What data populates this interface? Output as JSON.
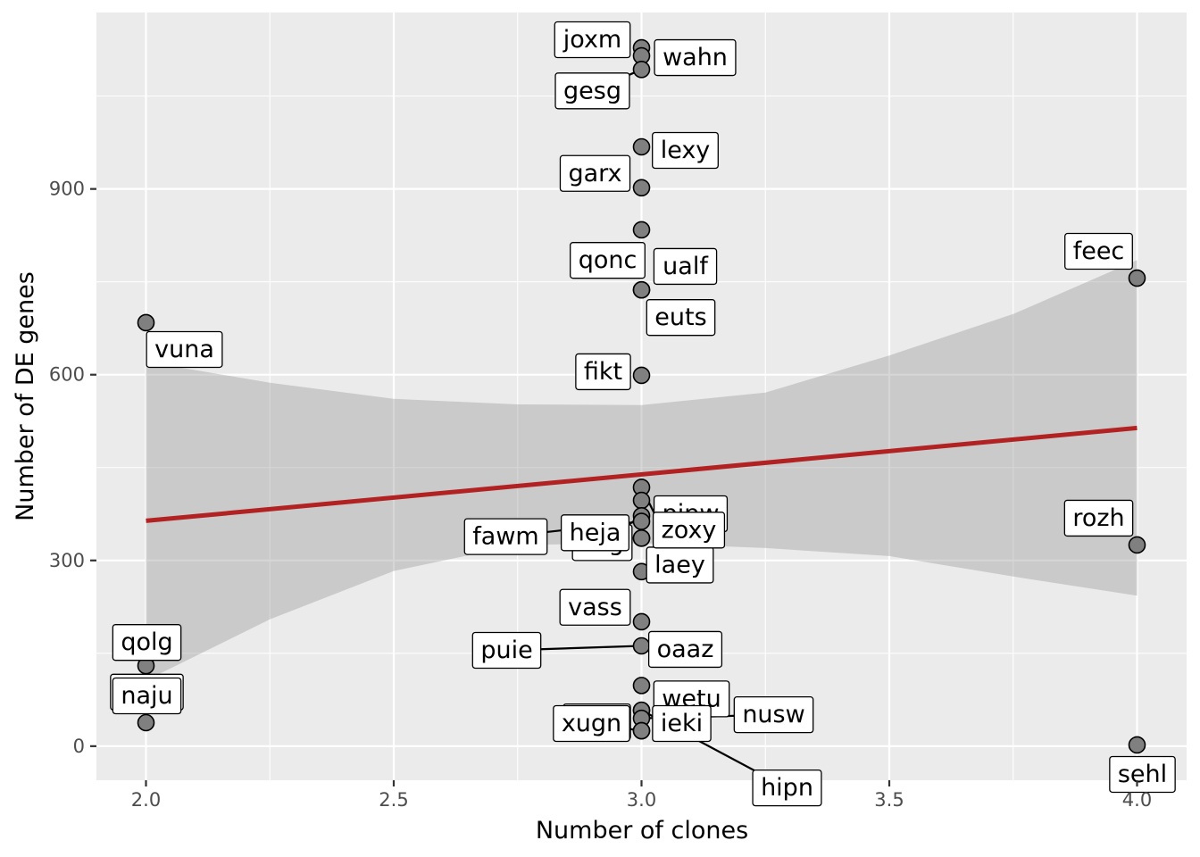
{
  "chart_data": {
    "type": "scatter",
    "xlabel": "Number of clones",
    "ylabel": "Number of DE genes",
    "xlim": [
      1.9,
      4.1
    ],
    "ylim": [
      -55,
      1185
    ],
    "x_ticks": [
      2.0,
      2.5,
      3.0,
      3.5,
      4.0
    ],
    "x_tick_labels": [
      "2.0",
      "2.5",
      "3.0",
      "3.5",
      "4.0"
    ],
    "y_ticks": [
      0,
      300,
      600,
      900
    ],
    "y_tick_labels": [
      "0",
      "300",
      "600",
      "900"
    ],
    "grid": true,
    "points": [
      {
        "label": "joxm",
        "x": 3.0,
        "y": 1128
      },
      {
        "label": "wahn",
        "x": 3.0,
        "y": 1115
      },
      {
        "label": "gesg",
        "x": 3.0,
        "y": 1093
      },
      {
        "label": "lexy",
        "x": 3.0,
        "y": 968
      },
      {
        "label": "garx",
        "x": 3.0,
        "y": 902
      },
      {
        "label": "ualf",
        "x": 3.0,
        "y": 834
      },
      {
        "label": "qonc",
        "x": 3.0,
        "y": 737
      },
      {
        "label": "euts",
        "x": 3.0,
        "y": 737
      },
      {
        "label": "fikt",
        "x": 3.0,
        "y": 599
      },
      {
        "label": "laey",
        "x": 3.0,
        "y": 418
      },
      {
        "label": "pipw",
        "x": 3.0,
        "y": 397
      },
      {
        "label": "oilg",
        "x": 3.0,
        "y": 372
      },
      {
        "label": "fawm",
        "x": 3.0,
        "y": 363
      },
      {
        "label": "zoxy",
        "x": 3.0,
        "y": 336
      },
      {
        "label": "heja",
        "x": 3.0,
        "y": 336
      },
      {
        "label": "vass",
        "x": 3.0,
        "y": 282
      },
      {
        "label": "oaaz",
        "x": 3.0,
        "y": 201
      },
      {
        "label": "puie",
        "x": 3.0,
        "y": 162
      },
      {
        "label": "wetu",
        "x": 3.0,
        "y": 98
      },
      {
        "label": "hipn",
        "x": 3.0,
        "y": 58
      },
      {
        "label": "qayj",
        "x": 3.0,
        "y": 58
      },
      {
        "label": "nusw",
        "x": 3.0,
        "y": 45
      },
      {
        "label": "xugn",
        "x": 3.0,
        "y": 25
      },
      {
        "label": "ieki",
        "x": 3.0,
        "y": 25
      },
      {
        "label": "vuna",
        "x": 2.0,
        "y": 684
      },
      {
        "label": "kuco",
        "x": 2.0,
        "y": 145
      },
      {
        "label": "qolg",
        "x": 2.0,
        "y": 130
      },
      {
        "label": "naju",
        "x": 2.0,
        "y": 38
      },
      {
        "label": "feec",
        "x": 4.0,
        "y": 756
      },
      {
        "label": "rozh",
        "x": 4.0,
        "y": 325
      },
      {
        "label": "sehl",
        "x": 4.0,
        "y": 2
      }
    ],
    "fit": {
      "method": "linear",
      "x": [
        2.0,
        4.0
      ],
      "y": [
        364,
        514
      ],
      "ci_x": [
        2.0,
        2.25,
        2.5,
        2.75,
        3.0,
        3.25,
        3.5,
        3.75,
        4.0
      ],
      "ci_lower": [
        106,
        205,
        283,
        325,
        328,
        320,
        307,
        274,
        243
      ],
      "ci_upper": [
        621,
        587,
        561,
        552,
        551,
        571,
        631,
        698,
        785
      ]
    },
    "colors": {
      "fit_line": "#b22222",
      "point_fill": "#808080",
      "panel": "#ebebeb"
    }
  }
}
